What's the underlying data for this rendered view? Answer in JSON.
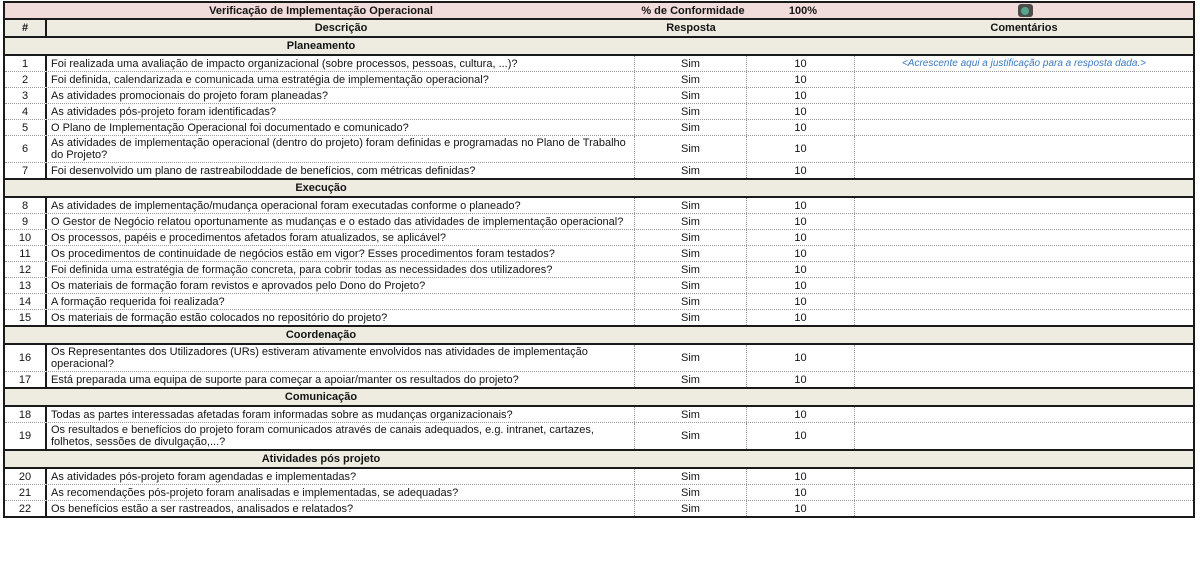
{
  "title_row": {
    "title": "Verificação de Implementação Operacional",
    "conformity_label": "% de Conformidade",
    "conformity_value": "100%",
    "status_icon": "green-status-indicator"
  },
  "columns": {
    "num": "#",
    "desc": "Descrição",
    "resp": "Resposta",
    "com": "Comentários"
  },
  "colors": {
    "title_band_pink": "#f2dcdb",
    "header_band_beige": "#eeece1",
    "comment_blue": "#3a7abd",
    "status_green": "#55a68b",
    "status_chip_gray": "#4d4d4d"
  },
  "sections": [
    {
      "name": "Planeamento",
      "items": [
        {
          "num": "1",
          "desc": "Foi realizada uma avaliação de impacto organizacional (sobre processos, pessoas, cultura, ...)?",
          "resp": "Sim",
          "score": "10",
          "comment": "<Acrescente aqui a justificação para a resposta dada.>"
        },
        {
          "num": "2",
          "desc": "Foi definida, calendarizada e comunicada uma estratégia de implementação operacional?",
          "resp": "Sim",
          "score": "10",
          "comment": ""
        },
        {
          "num": "3",
          "desc": "As atividades promocionais do projeto foram planeadas?",
          "resp": "Sim",
          "score": "10",
          "comment": ""
        },
        {
          "num": "4",
          "desc": "As atividades pós-projeto foram identificadas?",
          "resp": "Sim",
          "score": "10",
          "comment": ""
        },
        {
          "num": "5",
          "desc": "O Plano de Implementação Operacional foi documentado e comunicado?",
          "resp": "Sim",
          "score": "10",
          "comment": ""
        },
        {
          "num": "6",
          "desc": "As atividades de implementação operacional (dentro do projeto) foram definidas e programadas no Plano de Trabalho do Projeto?",
          "resp": "Sim",
          "score": "10",
          "comment": ""
        },
        {
          "num": "7",
          "desc": "Foi desenvolvido um plano de rastreabiloddade de benefícios, com métricas definidas?",
          "resp": "Sim",
          "score": "10",
          "comment": ""
        }
      ]
    },
    {
      "name": "Execução",
      "items": [
        {
          "num": "8",
          "desc": "As atividades de implementação/mudança operacional foram executadas conforme o planeado?",
          "resp": "Sim",
          "score": "10",
          "comment": ""
        },
        {
          "num": "9",
          "desc": "O Gestor de Negócio relatou oportunamente as mudanças e o estado das atividades de implementação operacional?",
          "resp": "Sim",
          "score": "10",
          "comment": ""
        },
        {
          "num": "10",
          "desc": "Os processos, papéis e procedimentos afetados foram atualizados, se aplicável?",
          "resp": "Sim",
          "score": "10",
          "comment": ""
        },
        {
          "num": "11",
          "desc": "Os procedimentos de continuidade de negócios estão em vigor? Esses procedimentos foram testados?",
          "resp": "Sim",
          "score": "10",
          "comment": ""
        },
        {
          "num": "12",
          "desc": "Foi definida uma estratégia de formação concreta, para cobrir todas as necessidades dos utilizadores?",
          "resp": "Sim",
          "score": "10",
          "comment": ""
        },
        {
          "num": "13",
          "desc": "Os materiais de formação foram revistos e aprovados pelo Dono do Projeto?",
          "resp": "Sim",
          "score": "10",
          "comment": ""
        },
        {
          "num": "14",
          "desc": "A formação requerida foi realizada?",
          "resp": "Sim",
          "score": "10",
          "comment": ""
        },
        {
          "num": "15",
          "desc": "Os materiais de formação estão colocados no repositório do projeto?",
          "resp": "Sim",
          "score": "10",
          "comment": ""
        }
      ]
    },
    {
      "name": "Coordenação",
      "items": [
        {
          "num": "16",
          "desc": "Os Representantes dos Utilizadores (URs) estiveram ativamente envolvidos nas atividades de implementação operacional?",
          "resp": "Sim",
          "score": "10",
          "comment": ""
        },
        {
          "num": "17",
          "desc": "Está preparada uma equipa de suporte para começar a apoiar/manter os resultados do projeto?",
          "resp": "Sim",
          "score": "10",
          "comment": ""
        }
      ]
    },
    {
      "name": "Comunicação",
      "items": [
        {
          "num": "18",
          "desc": "Todas as partes interessadas afetadas foram informadas sobre as mudanças organizacionais?",
          "resp": "Sim",
          "score": "10",
          "comment": ""
        },
        {
          "num": "19",
          "desc": "Os resultados e benefícios do projeto foram comunicados através de canais adequados, e.g. intranet, cartazes, folhetos, sessões de divulgação,...?",
          "resp": "Sim",
          "score": "10",
          "comment": ""
        }
      ]
    },
    {
      "name": "Atividades pós projeto",
      "items": [
        {
          "num": "20",
          "desc": "As atividades pós-projeto foram agendadas e implementadas?",
          "resp": "Sim",
          "score": "10",
          "comment": ""
        },
        {
          "num": "21",
          "desc": "As recomendações pós-projeto foram analisadas e implementadas, se adequadas?",
          "resp": "Sim",
          "score": "10",
          "comment": ""
        },
        {
          "num": "22",
          "desc": "Os benefícios estão a ser rastreados, analisados e relatados?",
          "resp": "Sim",
          "score": "10",
          "comment": ""
        }
      ]
    }
  ]
}
